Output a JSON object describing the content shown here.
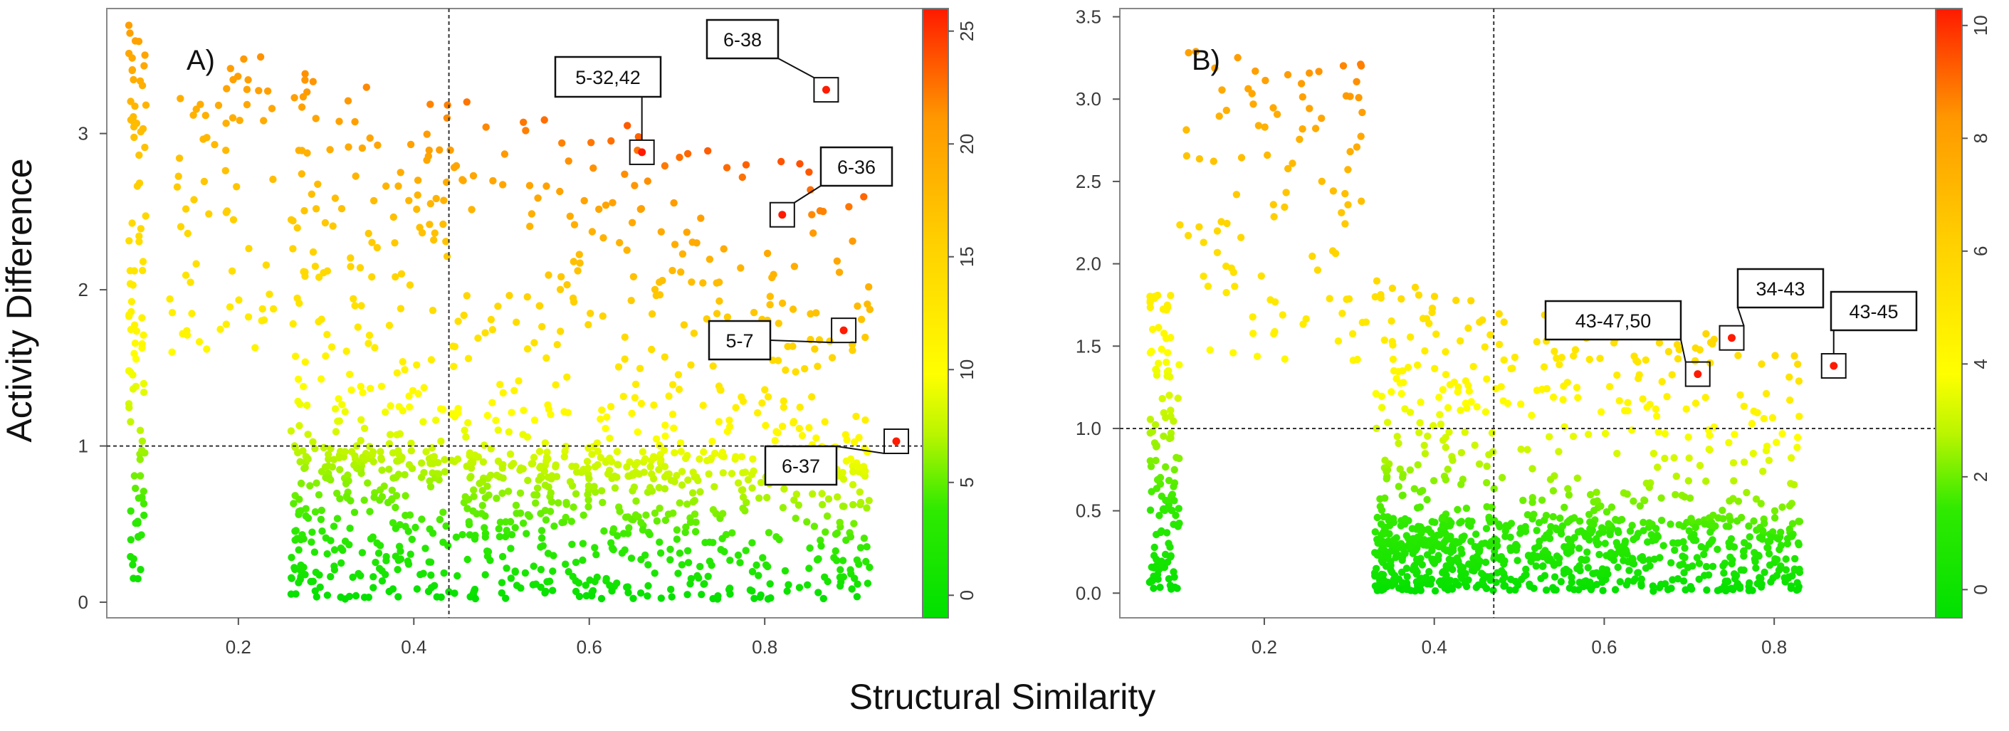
{
  "figure": {
    "xlabel": "Structural Similarity",
    "ylabel": "Activity Difference"
  },
  "chart_data": [
    {
      "type": "scatter",
      "panel": "A)",
      "xlabel": "Structural Similarity",
      "ylabel": "Activity Difference",
      "xlim": [
        0.05,
        0.98
      ],
      "ylim": [
        -0.1,
        3.8
      ],
      "xticks": [
        "0.2",
        "0.4",
        "0.6",
        "0.8"
      ],
      "xtick_values": [
        0.2,
        0.4,
        0.6,
        0.8
      ],
      "yticks": [
        "0",
        "1",
        "2",
        "3"
      ],
      "ytick_values": [
        0,
        1,
        2,
        3
      ],
      "threshold_x": 0.44,
      "threshold_y": 1.0,
      "colorbar": {
        "min": -1,
        "max": 26,
        "ticks": [
          "0",
          "5",
          "10",
          "15",
          "20",
          "25"
        ],
        "tick_values": [
          0,
          5,
          10,
          15,
          20,
          25
        ]
      },
      "labeled_points": [
        {
          "label": "6-38",
          "x": 0.87,
          "y": 3.28
        },
        {
          "label": "5-32,42",
          "x": 0.66,
          "y": 2.88
        },
        {
          "label": "6-36",
          "x": 0.82,
          "y": 2.48
        },
        {
          "label": "5-7",
          "x": 0.89,
          "y": 1.74
        },
        {
          "label": "6-37",
          "x": 0.95,
          "y": 1.03
        }
      ],
      "n_points": 1400,
      "seed": 7
    },
    {
      "type": "scatter",
      "panel": "B)",
      "xlabel": "Structural Similarity",
      "ylabel": "Activity Difference",
      "xlim": [
        0.03,
        0.99
      ],
      "ylim": [
        -0.15,
        3.55
      ],
      "xticks": [
        "0.2",
        "0.4",
        "0.6",
        "0.8"
      ],
      "xtick_values": [
        0.2,
        0.4,
        0.6,
        0.8
      ],
      "yticks": [
        "0.0",
        "0.5",
        "1.0",
        "1.5",
        "2.0",
        "2.5",
        "3.0",
        "3.5"
      ],
      "ytick_values": [
        0,
        0.5,
        1.0,
        1.5,
        2.0,
        2.5,
        3.0,
        3.5
      ],
      "threshold_x": 0.47,
      "threshold_y": 1.0,
      "colorbar": {
        "min": -0.5,
        "max": 10.3,
        "ticks": [
          "0",
          "2",
          "4",
          "6",
          "8",
          "10"
        ],
        "tick_values": [
          0,
          2,
          4,
          6,
          8,
          10
        ]
      },
      "labeled_points": [
        {
          "label": "43-47,50",
          "x": 0.71,
          "y": 1.33
        },
        {
          "label": "34-43",
          "x": 0.75,
          "y": 1.55
        },
        {
          "label": "43-45",
          "x": 0.87,
          "y": 1.38
        }
      ],
      "n_points": 1300,
      "seed": 11
    }
  ]
}
